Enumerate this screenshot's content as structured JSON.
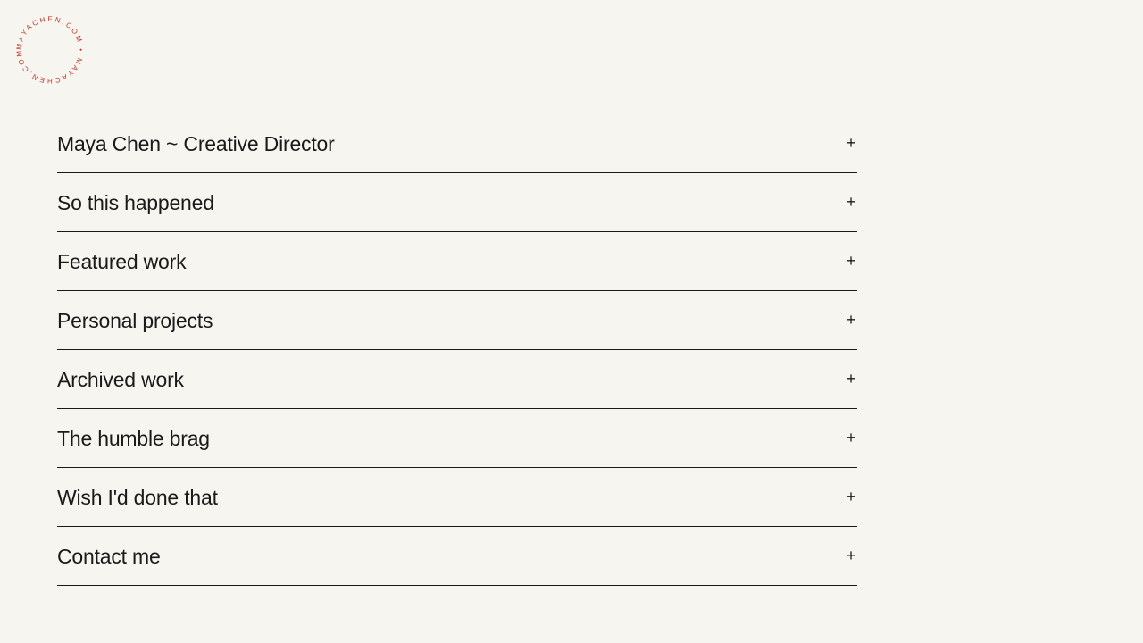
{
  "logo": {
    "text": "MAYACHEN.COM • MAYACHEN.COM • ",
    "color": "#c0392b"
  },
  "menu": {
    "items": [
      {
        "label": "Maya Chen ~ Creative Director",
        "icon": "plus-icon",
        "symbol": "+"
      },
      {
        "label": "So this happened",
        "icon": "plus-icon",
        "symbol": "+"
      },
      {
        "label": "Featured work",
        "icon": "plus-icon",
        "symbol": "+"
      },
      {
        "label": "Personal projects",
        "icon": "plus-icon",
        "symbol": "+"
      },
      {
        "label": "Archived work",
        "icon": "plus-icon",
        "symbol": "+"
      },
      {
        "label": "The humble brag",
        "icon": "plus-icon",
        "symbol": "+"
      },
      {
        "label": "Wish I'd done that",
        "icon": "plus-icon",
        "symbol": "+"
      },
      {
        "label": "Contact me",
        "icon": "plus-icon",
        "symbol": "+"
      }
    ]
  }
}
